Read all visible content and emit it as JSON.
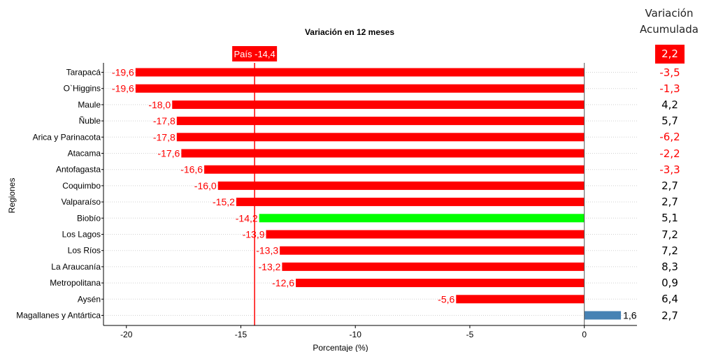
{
  "chart_data": {
    "type": "bar",
    "orientation": "horizontal",
    "title": "Variación en 12 meses",
    "xlabel": "Porcentaje (%)",
    "ylabel": "Regiones",
    "xlim": [
      -21,
      2.3
    ],
    "xticks": [
      -20,
      -15,
      -10,
      -5,
      0
    ],
    "xtick_labels": [
      "-20",
      "-15",
      "-10",
      "-5",
      "0"
    ],
    "grid": "horizontal dotted",
    "reference_line": {
      "label": "País -14,4",
      "value": -14.4,
      "color": "#ff0000"
    },
    "categories": [
      "Tarapacá",
      "O'Higgins",
      "Maule",
      "Ñuble",
      "Arica y Parinacota",
      "Atacama",
      "Antofagasta",
      "Coquimbo",
      "Valparaíso",
      "Biobío",
      "Los Lagos",
      "Los Ríos",
      "La Araucanía",
      "Metropolitana",
      "Aysén",
      "Magallanes y Antártica"
    ],
    "category_labels": [
      "Tarapacá",
      "O`Higgins",
      "Maule",
      "Ñuble",
      "Arica y Parinacota",
      "Atacama",
      "Antofagasta",
      "Coquimbo",
      "Valparaíso",
      "Biobío",
      "Los Lagos",
      "Los Ríos",
      "La Araucanía",
      "Metropolitana",
      "Aysén",
      "Magallanes y Antártica"
    ],
    "values": [
      -19.6,
      -19.6,
      -18.0,
      -17.8,
      -17.8,
      -17.6,
      -16.6,
      -16.0,
      -15.2,
      -14.2,
      -13.9,
      -13.3,
      -13.2,
      -12.6,
      -5.6,
      1.6
    ],
    "value_labels": [
      "-19,6",
      "-19,6",
      "-18,0",
      "-17,8",
      "-17,8",
      "-17,6",
      "-16,6",
      "-16,0",
      "-15,2",
      "-14,2",
      "-13,9",
      "-13,3",
      "-13,2",
      "-12,6",
      "-5,6",
      "1,6"
    ],
    "bar_colors": [
      "#ff0000",
      "#ff0000",
      "#ff0000",
      "#ff0000",
      "#ff0000",
      "#ff0000",
      "#ff0000",
      "#ff0000",
      "#ff0000",
      "#00ff00",
      "#ff0000",
      "#ff0000",
      "#ff0000",
      "#ff0000",
      "#ff0000",
      "#4682b4"
    ],
    "label_colors": [
      "#ff0000",
      "#ff0000",
      "#ff0000",
      "#ff0000",
      "#ff0000",
      "#ff0000",
      "#ff0000",
      "#ff0000",
      "#ff0000",
      "#ff0000",
      "#ff0000",
      "#ff0000",
      "#ff0000",
      "#ff0000",
      "#ff0000",
      "#000000"
    ]
  },
  "side_panel": {
    "title_line1": "Variación",
    "title_line2": "Acumulada",
    "country_value": "2,2",
    "country_box_color": "#ff0000",
    "values": [
      "-3,5",
      "-1,3",
      "4,2",
      "5,7",
      "-6,2",
      "-2,2",
      "-3,3",
      "2,7",
      "2,7",
      "5,1",
      "7,2",
      "7,2",
      "8,3",
      "0,9",
      "6,4",
      "2,7"
    ],
    "colors": [
      "#ff0000",
      "#ff0000",
      "#000000",
      "#000000",
      "#ff0000",
      "#ff0000",
      "#ff0000",
      "#000000",
      "#000000",
      "#000000",
      "#000000",
      "#000000",
      "#000000",
      "#000000",
      "#000000",
      "#000000"
    ]
  }
}
